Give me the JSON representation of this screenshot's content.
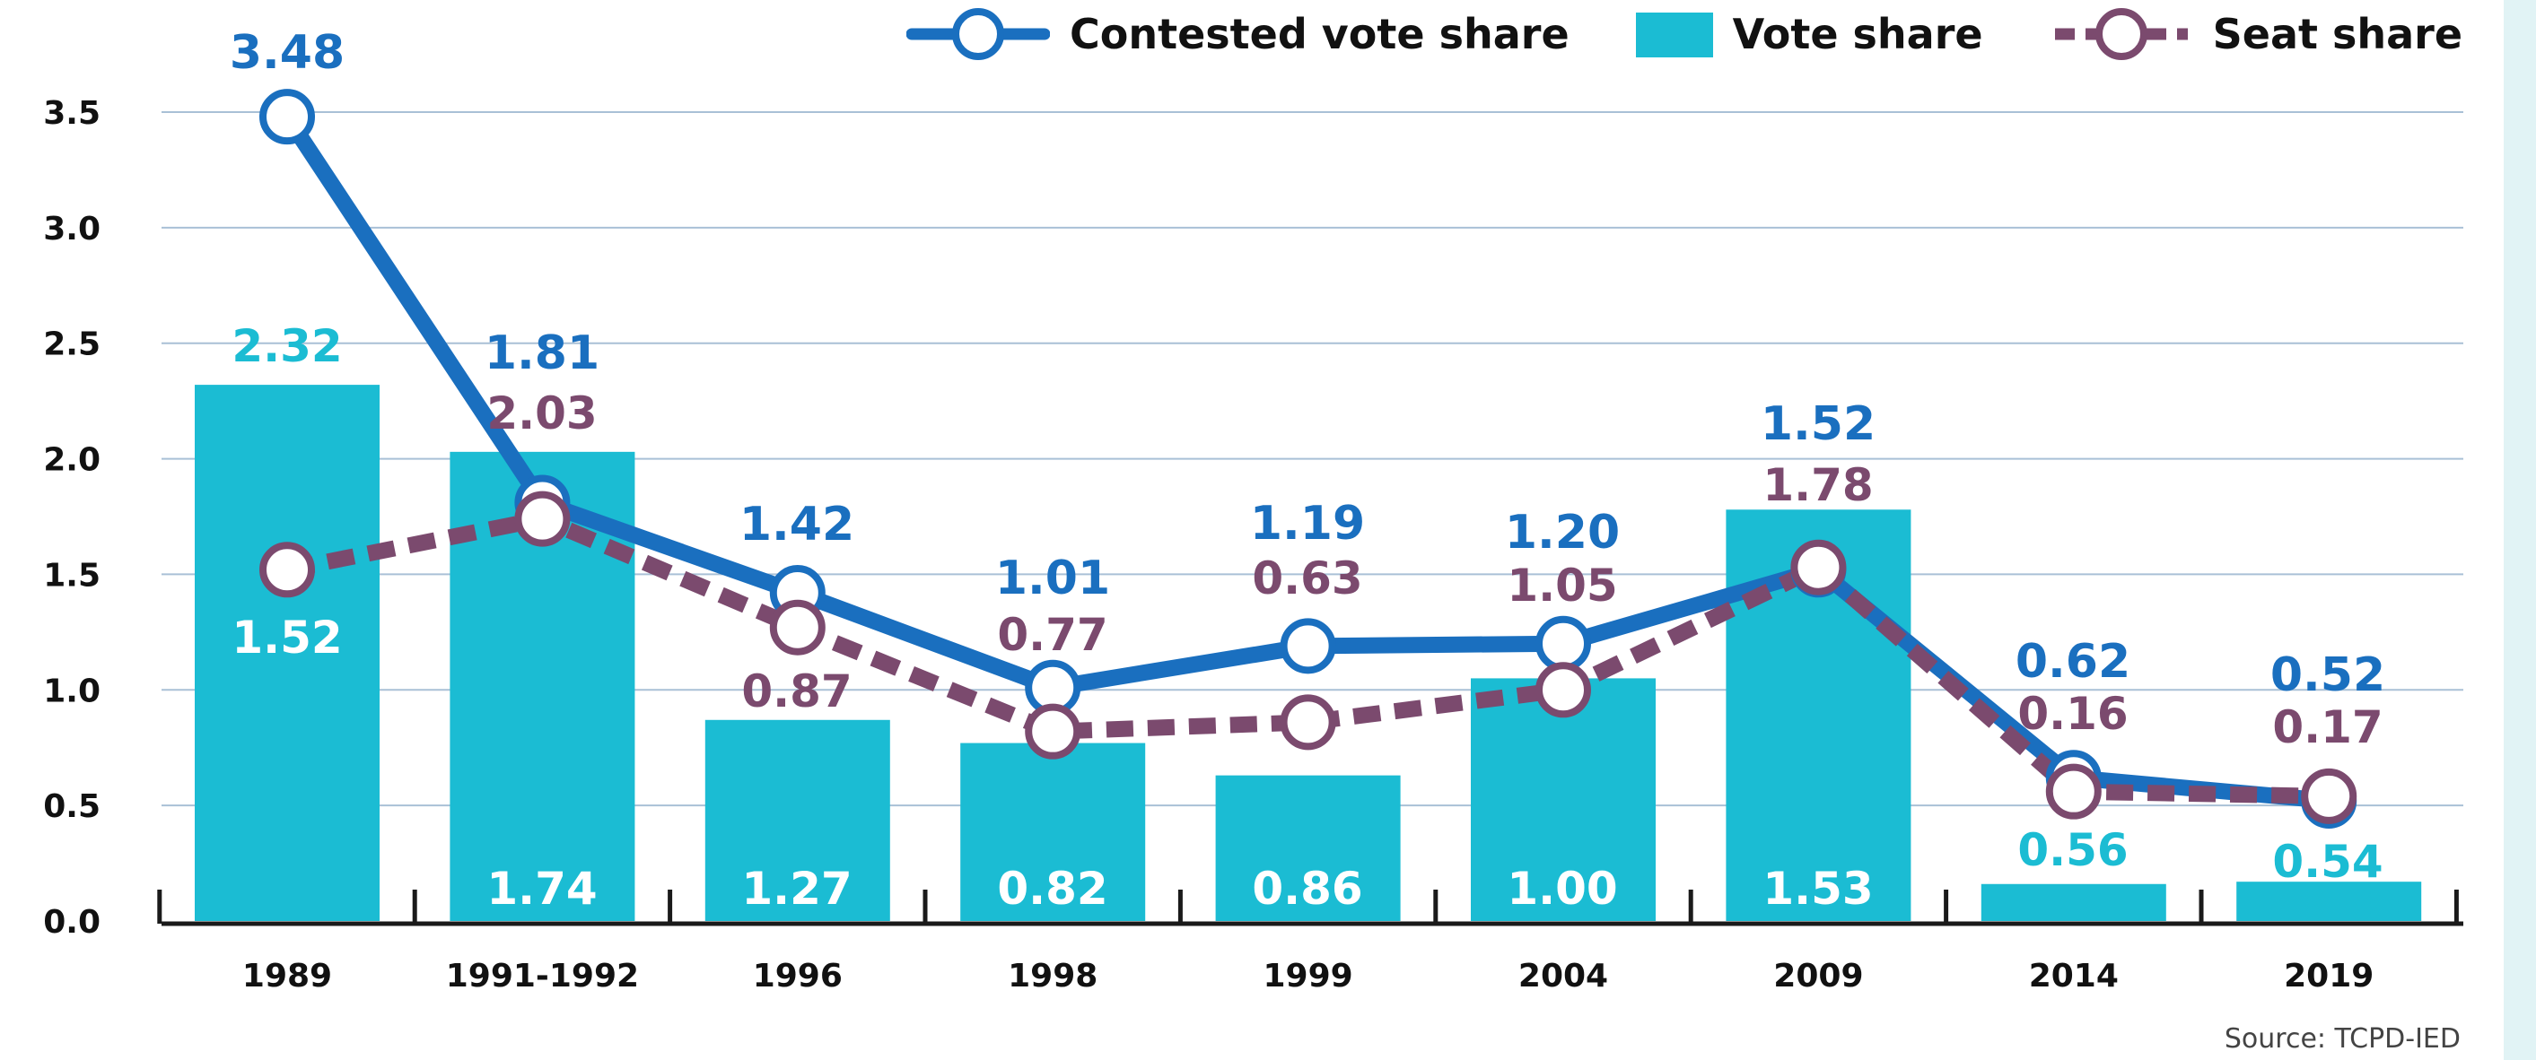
{
  "chart_data": {
    "type": "bar",
    "categories": [
      "1989",
      "1991-1992",
      "1996",
      "1998",
      "1999",
      "2004",
      "2009",
      "2014",
      "2019"
    ],
    "ylim": [
      0,
      3.5
    ],
    "yticks": [
      "0.0",
      "0.5",
      "1.0",
      "1.5",
      "2.0",
      "2.5",
      "3.0",
      "3.5"
    ],
    "grid": true,
    "legend_position": "top",
    "series": [
      {
        "name": "Contested vote share",
        "kind": "line",
        "style": "solid",
        "color": "#1a6fbf",
        "values": [
          3.48,
          1.81,
          1.42,
          1.01,
          1.19,
          1.2,
          1.52,
          0.62,
          0.52
        ],
        "labels": [
          "3.48",
          "1.81",
          "1.42",
          "1.01",
          "1.19",
          "1.20",
          "1.52",
          "0.62",
          "0.52"
        ]
      },
      {
        "name": "Vote share",
        "kind": "bar",
        "color": "#1bbcd3",
        "values": [
          2.32,
          2.03,
          0.87,
          0.77,
          0.63,
          1.05,
          1.78,
          0.16,
          0.17
        ],
        "labels": [
          "2.32",
          "2.03",
          "0.87",
          "0.77",
          "0.63",
          "1.05",
          "1.78",
          "0.16",
          "0.17"
        ]
      },
      {
        "name": "Seat share",
        "kind": "line",
        "style": "dashed",
        "color": "#7b4a6e",
        "values": [
          1.52,
          1.74,
          1.27,
          0.82,
          0.86,
          1.0,
          1.53,
          0.56,
          0.54
        ],
        "labels": [
          "1.52",
          "1.74",
          "1.27",
          "0.82",
          "0.86",
          "1.00",
          "1.53",
          "0.56",
          "0.54"
        ]
      }
    ]
  },
  "source": "Source: TCPD-IED"
}
